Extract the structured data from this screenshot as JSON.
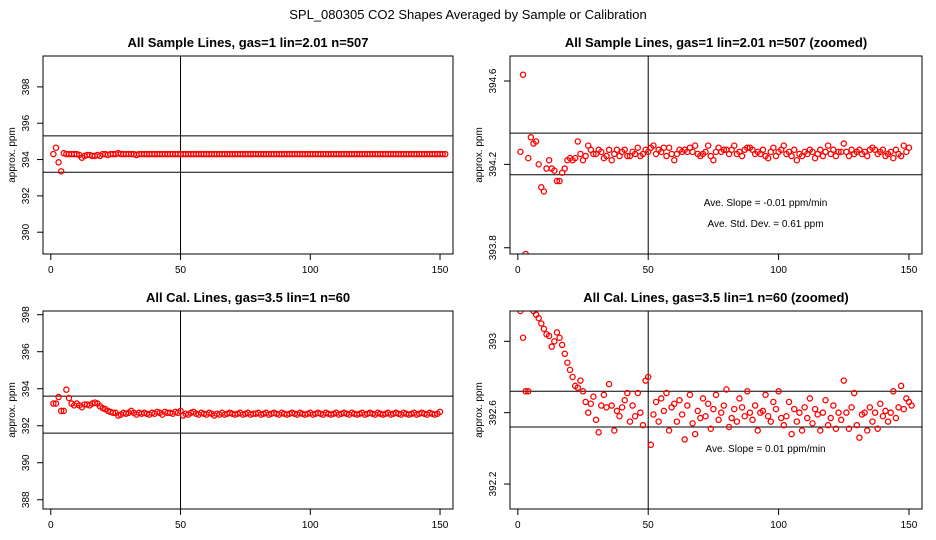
{
  "figure": {
    "suptitle": "SPL_080305  CO2 Shapes Averaged by Sample or Calibration",
    "colors": {
      "points": "#ff0000",
      "axes": "#000000",
      "background": "#ffffff"
    }
  },
  "chart_data": [
    {
      "type": "scatter",
      "title": "All Sample Lines, gas=1 lin=2.01 n=507",
      "ylabel": "approx. ppm",
      "xlim": [
        -3,
        155
      ],
      "ylim": [
        388.8,
        399.7
      ],
      "xticks": [
        0,
        50,
        100,
        150
      ],
      "yticks": [
        390,
        392,
        394,
        396,
        398
      ],
      "hlines": [
        395.3,
        393.3
      ],
      "vline": 50,
      "annotations": [],
      "series": [
        {
          "values": [
            394.3,
            394.65,
            393.85,
            393.35,
            394.35,
            394.3,
            394.3,
            394.3,
            394.3,
            394.3,
            394.25,
            394.1,
            394.2,
            394.25,
            394.25,
            394.2,
            394.2,
            394.25,
            394.2,
            394.3,
            394.3,
            394.25,
            394.3,
            394.3,
            394.3,
            394.35,
            394.3,
            394.3,
            394.3,
            394.3,
            394.3,
            394.3,
            394.25,
            394.3,
            394.3,
            394.3,
            394.3,
            394.3,
            394.3,
            394.3,
            394.3,
            394.3,
            394.3,
            394.3,
            394.3,
            394.3,
            394.3,
            394.3,
            394.3,
            394.3,
            394.3,
            394.3,
            394.3,
            394.3,
            394.3,
            394.3,
            394.3,
            394.3,
            394.3,
            394.3,
            394.3,
            394.3,
            394.3,
            394.3,
            394.3,
            394.3,
            394.3,
            394.3,
            394.3,
            394.3,
            394.3,
            394.3,
            394.3,
            394.3,
            394.3,
            394.3,
            394.3,
            394.3,
            394.3,
            394.3,
            394.3,
            394.3,
            394.3,
            394.3,
            394.3,
            394.3,
            394.3,
            394.3,
            394.3,
            394.3,
            394.3,
            394.3,
            394.3,
            394.3,
            394.3,
            394.3,
            394.3,
            394.3,
            394.3,
            394.3,
            394.3,
            394.3,
            394.3,
            394.3,
            394.3,
            394.3,
            394.3,
            394.3,
            394.3,
            394.3,
            394.3,
            394.3,
            394.3,
            394.3,
            394.3,
            394.3,
            394.3,
            394.3,
            394.3,
            394.3,
            394.3,
            394.3,
            394.3,
            394.3,
            394.3,
            394.3,
            394.3,
            394.3,
            394.3,
            394.3,
            394.3,
            394.3,
            394.3,
            394.3,
            394.3,
            394.3,
            394.3,
            394.3,
            394.3,
            394.3,
            394.3,
            394.3,
            394.3,
            394.3,
            394.3,
            394.3,
            394.3,
            394.3,
            394.3,
            394.3,
            394.3,
            394.3
          ]
        }
      ]
    },
    {
      "type": "scatter",
      "title": "All Sample Lines, gas=1 lin=2.01 n=507 (zoomed)",
      "ylabel": "approx. ppm",
      "xlim": [
        -3,
        155
      ],
      "ylim": [
        393.77,
        394.72
      ],
      "xticks": [
        0,
        50,
        100,
        150
      ],
      "yticks": [
        393.8,
        394.2,
        394.6
      ],
      "hlines": [
        394.35,
        394.15
      ],
      "vline": 50,
      "annotations": [
        {
          "text": "Ave. Slope =  -0.01  ppm/min",
          "x": 95,
          "y": 394.0
        },
        {
          "text": "Ave. Std. Dev. =  0.61  ppm",
          "x": 95,
          "y": 393.9
        }
      ],
      "series": [
        {
          "values": [
            394.26,
            394.63,
            393.77,
            394.23,
            394.33,
            394.3,
            394.31,
            394.2,
            394.09,
            394.07,
            394.18,
            394.22,
            394.18,
            394.17,
            394.12,
            394.12,
            394.16,
            394.18,
            394.22,
            394.23,
            394.22,
            394.23,
            394.31,
            394.25,
            394.22,
            394.24,
            394.29,
            394.27,
            394.25,
            394.25,
            394.27,
            394.26,
            394.23,
            394.24,
            394.27,
            394.22,
            394.25,
            394.27,
            394.24,
            394.26,
            394.27,
            394.24,
            394.24,
            394.26,
            394.25,
            394.28,
            394.24,
            394.25,
            394.27,
            394.26,
            394.28,
            394.29,
            394.25,
            394.27,
            394.26,
            394.28,
            394.24,
            394.28,
            394.25,
            394.22,
            394.25,
            394.27,
            394.26,
            394.27,
            394.26,
            394.28,
            394.26,
            394.29,
            394.25,
            394.24,
            394.25,
            394.26,
            394.29,
            394.24,
            394.22,
            394.26,
            394.28,
            394.26,
            394.27,
            394.27,
            394.25,
            394.27,
            394.29,
            394.25,
            394.26,
            394.24,
            394.27,
            394.28,
            394.28,
            394.27,
            394.25,
            394.26,
            394.25,
            394.27,
            394.24,
            394.23,
            394.26,
            394.28,
            394.24,
            394.26,
            394.27,
            394.29,
            394.25,
            394.26,
            394.24,
            394.27,
            394.22,
            394.25,
            394.24,
            394.26,
            394.25,
            394.27,
            394.26,
            394.23,
            394.25,
            394.27,
            394.24,
            394.26,
            394.29,
            394.25,
            394.27,
            394.24,
            394.26,
            394.26,
            394.3,
            394.26,
            394.24,
            394.27,
            394.25,
            394.26,
            394.27,
            394.25,
            394.26,
            394.24,
            394.27,
            394.28,
            394.27,
            394.25,
            394.26,
            394.27,
            394.24,
            394.25,
            394.26,
            394.23,
            394.27,
            394.25,
            394.24,
            394.29,
            394.26,
            394.28
          ]
        }
      ]
    },
    {
      "type": "scatter",
      "title": "All Cal. Lines, gas=3.5 lin=1 n=60",
      "ylabel": "approx. ppm",
      "xlim": [
        -3,
        155
      ],
      "ylim": [
        387.5,
        398.2
      ],
      "xticks": [
        0,
        50,
        100,
        150
      ],
      "yticks": [
        388,
        390,
        392,
        394,
        396,
        398
      ],
      "hlines": [
        393.6,
        391.6
      ],
      "vline": 50,
      "annotations": [],
      "series": [
        {
          "values": [
            393.2,
            393.2,
            393.55,
            392.8,
            392.8,
            393.95,
            393.5,
            393.2,
            393.1,
            393.2,
            393.1,
            393.0,
            393.15,
            393.15,
            393.1,
            393.2,
            393.25,
            393.2,
            393.05,
            392.95,
            392.9,
            392.8,
            392.75,
            392.7,
            392.7,
            392.55,
            392.6,
            392.7,
            392.65,
            392.7,
            392.8,
            392.7,
            392.6,
            392.7,
            392.65,
            392.7,
            392.65,
            392.6,
            392.7,
            392.65,
            392.75,
            392.7,
            392.6,
            392.75,
            392.7,
            392.7,
            392.65,
            392.75,
            392.7,
            392.8,
            392.55,
            392.65,
            392.6,
            392.7,
            392.75,
            392.65,
            392.6,
            392.7,
            392.65,
            392.6,
            392.7,
            392.65,
            392.55,
            392.65,
            392.6,
            392.7,
            392.6,
            392.65,
            392.7,
            392.65,
            392.6,
            392.65,
            392.7,
            392.6,
            392.65,
            392.7,
            392.6,
            392.65,
            392.65,
            392.7,
            392.6,
            392.65,
            392.7,
            392.6,
            392.65,
            392.7,
            392.65,
            392.6,
            392.7,
            392.65,
            392.6,
            392.65,
            392.7,
            392.65,
            392.6,
            392.7,
            392.65,
            392.6,
            392.65,
            392.7,
            392.6,
            392.65,
            392.7,
            392.65,
            392.6,
            392.7,
            392.65,
            392.6,
            392.65,
            392.7,
            392.6,
            392.65,
            392.7,
            392.65,
            392.6,
            392.7,
            392.65,
            392.6,
            392.65,
            392.7,
            392.6,
            392.65,
            392.7,
            392.65,
            392.6,
            392.7,
            392.65,
            392.6,
            392.65,
            392.7,
            392.6,
            392.65,
            392.7,
            392.65,
            392.6,
            392.7,
            392.65,
            392.6,
            392.65,
            392.7,
            392.6,
            392.65,
            392.7,
            392.65,
            392.6,
            392.7,
            392.65,
            392.6,
            392.65,
            392.75
          ]
        }
      ]
    },
    {
      "type": "scatter",
      "title": "All Cal. Lines, gas=3.5 lin=1 n=60 (zoomed)",
      "ylabel": "approx. ppm",
      "xlim": [
        -3,
        155
      ],
      "ylim": [
        392.06,
        393.17
      ],
      "xticks": [
        0,
        50,
        100,
        150
      ],
      "yticks": [
        392.2,
        392.6,
        393.0
      ],
      "hlines": [
        392.72,
        392.52
      ],
      "vline": 50,
      "annotations": [
        {
          "text": "Ave. Slope =  0.01  ppm/min",
          "x": 95,
          "y": 392.38
        }
      ],
      "series": [
        {
          "values": [
            393.17,
            393.02,
            392.72,
            392.72,
            393.22,
            393.17,
            393.15,
            393.13,
            393.1,
            393.07,
            393.04,
            393.03,
            392.97,
            393.0,
            393.05,
            393.02,
            392.98,
            392.93,
            392.88,
            392.84,
            392.8,
            392.75,
            392.74,
            392.78,
            392.72,
            392.66,
            392.6,
            392.65,
            392.69,
            392.56,
            392.49,
            392.64,
            392.7,
            392.63,
            392.76,
            392.64,
            392.5,
            392.61,
            392.58,
            392.63,
            392.67,
            392.71,
            392.55,
            392.64,
            392.58,
            392.71,
            392.6,
            392.53,
            392.78,
            392.8,
            392.42,
            392.59,
            392.66,
            392.55,
            392.68,
            392.61,
            392.71,
            392.5,
            392.63,
            392.65,
            392.55,
            392.67,
            392.59,
            392.45,
            392.64,
            392.7,
            392.54,
            392.48,
            392.61,
            392.57,
            392.68,
            392.58,
            392.65,
            392.51,
            392.62,
            392.7,
            392.56,
            392.6,
            392.64,
            392.73,
            392.52,
            392.57,
            392.62,
            392.55,
            392.68,
            392.63,
            392.58,
            392.72,
            392.6,
            392.56,
            392.64,
            392.5,
            392.6,
            392.61,
            392.7,
            392.58,
            392.55,
            392.66,
            392.62,
            392.72,
            392.57,
            392.53,
            392.58,
            392.66,
            392.48,
            392.62,
            392.55,
            392.6,
            392.5,
            392.63,
            392.57,
            392.68,
            392.54,
            392.62,
            392.59,
            392.5,
            392.6,
            392.67,
            392.53,
            392.57,
            392.64,
            392.51,
            392.6,
            392.56,
            392.78,
            392.6,
            392.51,
            392.63,
            392.71,
            392.53,
            392.46,
            392.59,
            392.6,
            392.5,
            392.63,
            392.55,
            392.6,
            392.51,
            392.65,
            392.58,
            392.61,
            392.55,
            392.6,
            392.72,
            392.57,
            392.63,
            392.75,
            392.62,
            392.68,
            392.66,
            392.64
          ]
        }
      ]
    }
  ]
}
